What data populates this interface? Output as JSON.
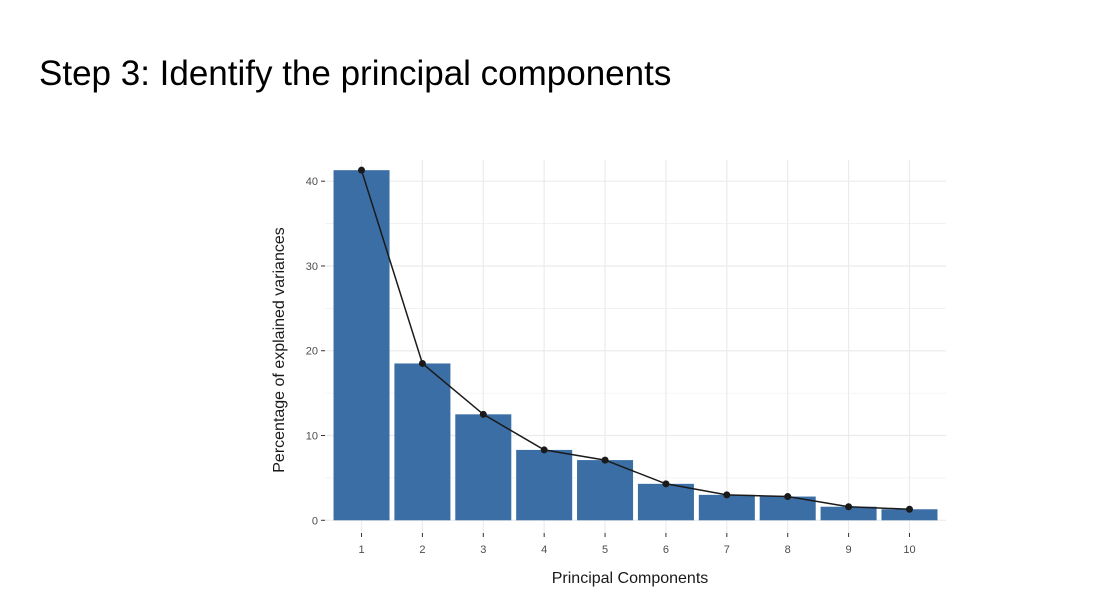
{
  "slide": {
    "title": "Step 3: Identify the principal components"
  },
  "chart_data": {
    "type": "bar",
    "title": "",
    "xlabel": "Principal Components",
    "ylabel": "Percentage of explained variances",
    "categories": [
      "1",
      "2",
      "3",
      "4",
      "5",
      "6",
      "7",
      "8",
      "9",
      "10"
    ],
    "values": [
      41.3,
      18.5,
      12.5,
      8.3,
      7.1,
      4.3,
      3.0,
      2.8,
      1.6,
      1.3
    ],
    "line_overlay": true,
    "ylim": [
      -1.5,
      42.5
    ],
    "yticks": [
      0,
      10,
      20,
      30,
      40
    ],
    "grid": true,
    "bar_color": "#3a6ea5",
    "line_color": "#1a1a1a",
    "grid_color": "#ebebeb"
  }
}
